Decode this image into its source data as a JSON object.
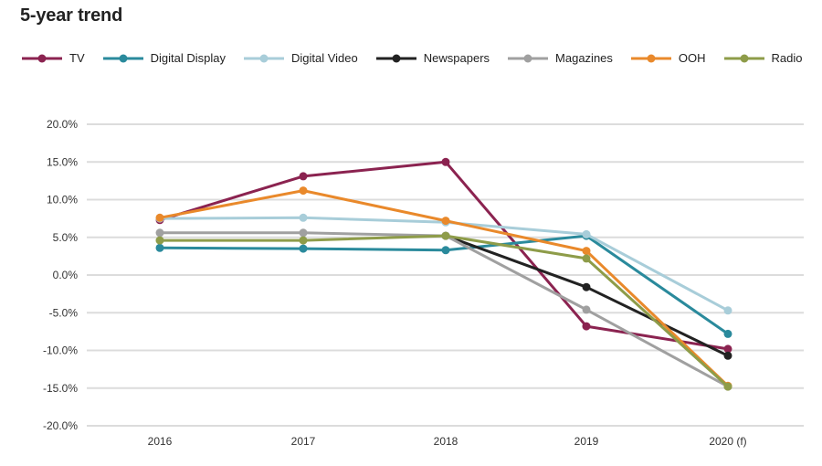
{
  "chart_data": {
    "type": "line",
    "title": "5-year trend",
    "categories": [
      "2016",
      "2017",
      "2018",
      "2019",
      "2020 (f)"
    ],
    "ylim": [
      -20,
      20
    ],
    "yticks": [
      "20.0%",
      "15.0%",
      "10.0%",
      "5.0%",
      "0.0%",
      "-5.0%",
      "-10.0%",
      "-15.0%",
      "-20.0%"
    ],
    "grid": true,
    "legend_position": "top-left",
    "series": [
      {
        "name": "TV",
        "color": "#8b2350",
        "values": [
          7.3,
          13.1,
          15.0,
          -6.8,
          -9.8
        ]
      },
      {
        "name": "Digital Display",
        "color": "#2a8a9c",
        "values": [
          3.6,
          3.5,
          3.3,
          5.2,
          -7.8
        ]
      },
      {
        "name": "Digital Video",
        "color": "#a8cdd9",
        "values": [
          7.5,
          7.6,
          7.0,
          5.4,
          -4.7
        ]
      },
      {
        "name": "Newspapers",
        "color": "#222222",
        "values": [
          null,
          null,
          5.2,
          -1.6,
          -10.7
        ]
      },
      {
        "name": "Magazines",
        "color": "#a0a0a0",
        "values": [
          5.6,
          5.6,
          5.2,
          -4.6,
          -14.8
        ]
      },
      {
        "name": "OOH",
        "color": "#e9892b",
        "values": [
          7.6,
          11.2,
          7.2,
          3.2,
          -14.7
        ]
      },
      {
        "name": "Radio",
        "color": "#8e9c49",
        "values": [
          4.6,
          4.6,
          5.2,
          2.2,
          -14.8
        ]
      }
    ]
  }
}
